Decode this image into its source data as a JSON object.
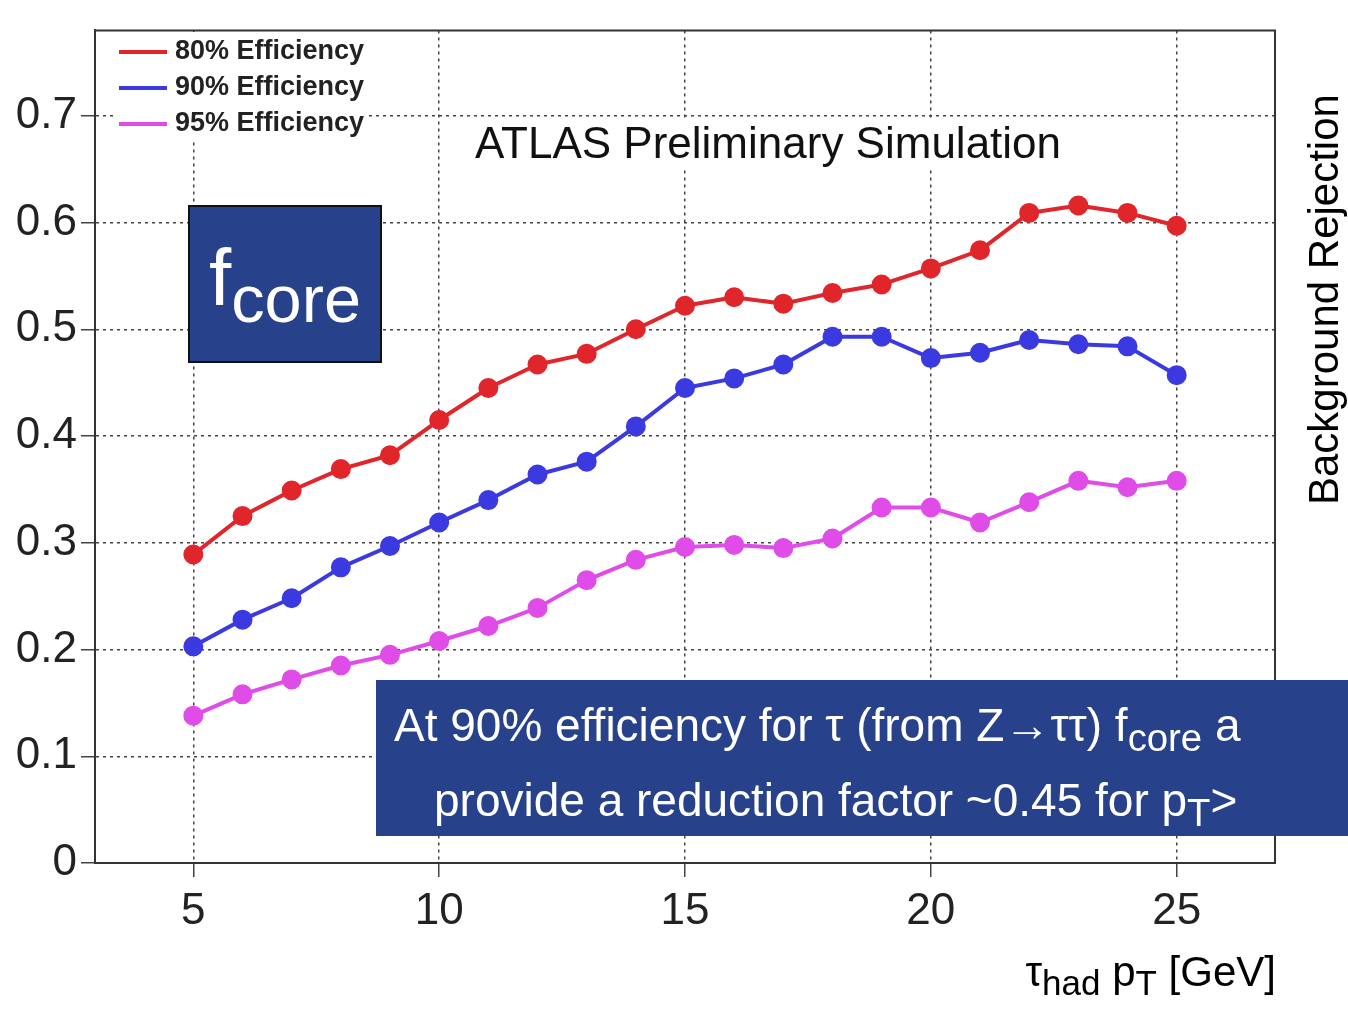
{
  "chart_data": {
    "type": "line",
    "title": "ATLAS Preliminary Simulation",
    "xlabel": "τ$_{had}$ p$_{T}$ [GeV]",
    "ylabel": "Background Rejection",
    "annotations": [
      "f$_{core}$",
      "At 90% efficiency for τ (from Z→ττ) f$_{core}$ a",
      "provide a reduction factor ~0.45 for p$_{T}$> "
    ],
    "x": [
      5,
      6,
      7,
      8,
      9,
      10,
      11,
      12,
      13,
      14,
      15,
      16,
      17,
      18,
      19,
      20,
      21,
      22,
      23,
      24,
      25
    ],
    "series": [
      {
        "name": "80% Efficiency",
        "color": "#e0262a",
        "values": [
          0.289,
          0.325,
          0.349,
          0.369,
          0.382,
          0.415,
          0.445,
          0.467,
          0.477,
          0.5,
          0.522,
          0.53,
          0.524,
          0.534,
          0.542,
          0.557,
          0.574,
          0.609,
          0.616,
          0.609,
          0.597
        ]
      },
      {
        "name": "90% Efficiency",
        "color": "#3a3ae0",
        "values": [
          0.203,
          0.228,
          0.248,
          0.277,
          0.297,
          0.319,
          0.34,
          0.364,
          0.376,
          0.409,
          0.445,
          0.454,
          0.467,
          0.493,
          0.493,
          0.473,
          0.478,
          0.49,
          0.486,
          0.484,
          0.457
        ]
      },
      {
        "name": "95% Efficiency",
        "color": "#e04ce8",
        "values": [
          0.138,
          0.158,
          0.172,
          0.185,
          0.195,
          0.208,
          0.222,
          0.239,
          0.265,
          0.284,
          0.296,
          0.298,
          0.295,
          0.304,
          0.333,
          0.333,
          0.319,
          0.338,
          0.358,
          0.352,
          0.358
        ]
      }
    ],
    "xlim": [
      3,
      27
    ],
    "xticks": [
      5,
      10,
      15,
      20,
      25
    ],
    "ylim": [
      0,
      0.78
    ],
    "yticks": [
      0,
      0.1,
      0.2,
      0.3,
      0.4,
      0.5,
      0.6,
      0.7
    ],
    "grid": true,
    "legend": "top left",
    "marker": "circle",
    "line_style": "solid"
  }
}
